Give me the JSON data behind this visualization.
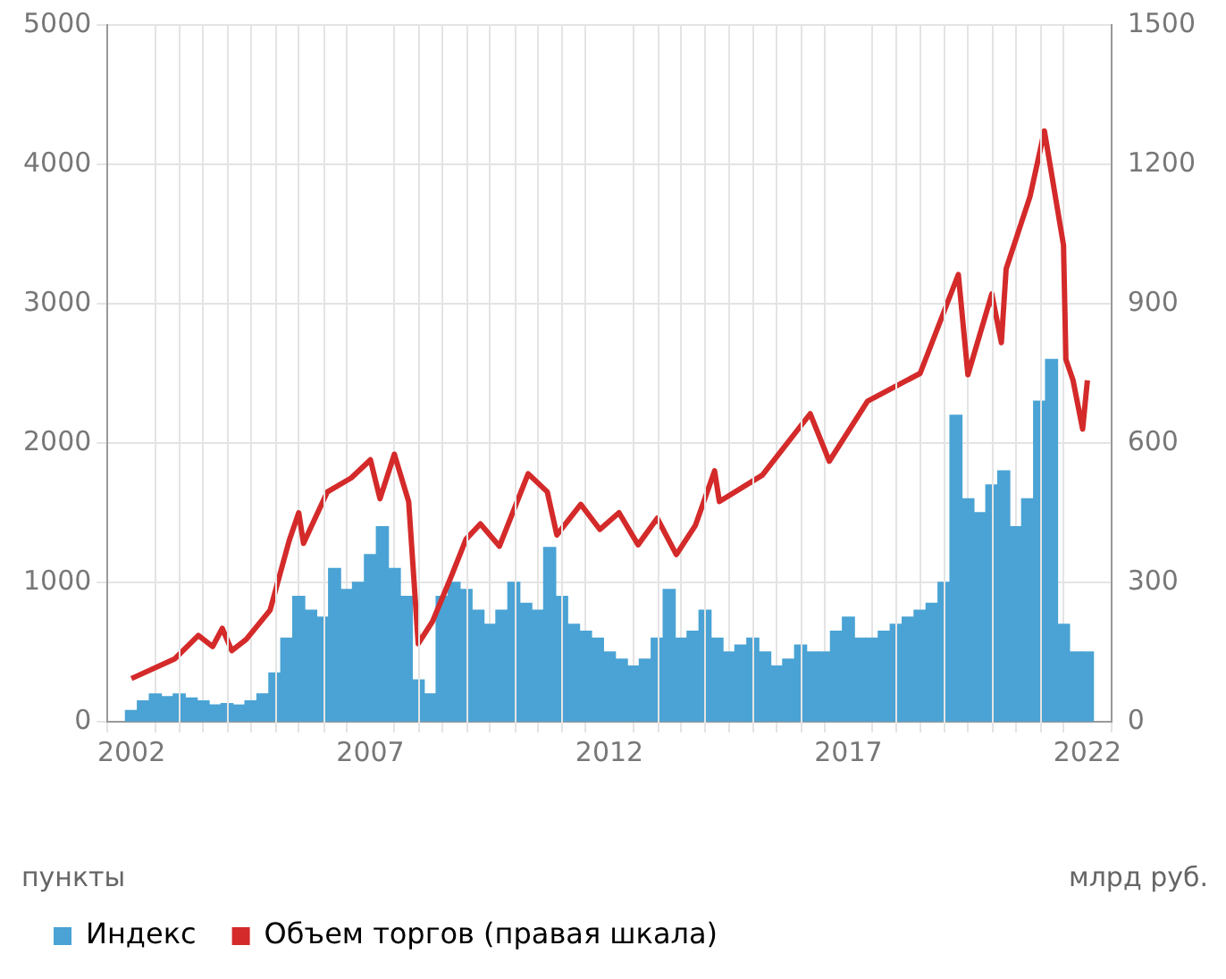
{
  "chart_data": {
    "type": "bar",
    "ylabel": "пункты",
    "y2label": "млрд руб.",
    "xlim": [
      2002,
      2022
    ],
    "xticks": [
      2002,
      {
        "value": 2003,
        "label": null
      },
      {
        "value": 2004,
        "label": null
      },
      {
        "value": 2005,
        "label": null
      },
      {
        "value": 2006,
        "label": null
      },
      2007,
      {
        "value": 2008,
        "label": null
      },
      {
        "value": 2009,
        "label": null
      },
      {
        "value": 2010,
        "label": null
      },
      {
        "value": 2011,
        "label": null
      },
      2012,
      {
        "value": 2013,
        "label": null
      },
      {
        "value": 2014,
        "label": null
      },
      {
        "value": 2015,
        "label": null
      },
      {
        "value": 2016,
        "label": null
      },
      2017,
      {
        "value": 2018,
        "label": null
      },
      {
        "value": 2019,
        "label": null
      },
      {
        "value": 2020,
        "label": null
      },
      {
        "value": 2021,
        "label": null
      },
      2022
    ],
    "ylim": [
      0,
      5000
    ],
    "yticks": [
      0,
      1000,
      2000,
      3000,
      4000,
      5000
    ],
    "y2lim": [
      0,
      1500
    ],
    "y2ticks": [
      0,
      300,
      600,
      900,
      1200,
      1500
    ],
    "grid": true,
    "legend": "bottom",
    "series": [
      {
        "name": "Индекс",
        "color": "#4aa3d4",
        "x": [
          2002,
          2002.25,
          2002.5,
          2002.75,
          2003,
          2003.25,
          2003.5,
          2003.75,
          2004,
          2004.25,
          2004.5,
          2004.75,
          2005,
          2005.25,
          2005.5,
          2005.75,
          2006,
          2006.25,
          2006.5,
          2006.75,
          2007,
          2007.25,
          2007.5,
          2007.75,
          2008,
          2008.25,
          2008.5,
          2008.75,
          2009,
          2009.25,
          2009.5,
          2009.75,
          2010,
          2010.25,
          2010.5,
          2010.75,
          2011,
          2011.25,
          2011.5,
          2011.75,
          2012,
          2012.25,
          2012.5,
          2012.75,
          2013,
          2013.25,
          2013.5,
          2013.75,
          2014,
          2014.25,
          2014.5,
          2014.75,
          2015,
          2015.25,
          2015.5,
          2015.75,
          2016,
          2016.25,
          2016.5,
          2016.75,
          2017,
          2017.25,
          2017.5,
          2017.75,
          2018,
          2018.25,
          2018.5,
          2018.75,
          2019,
          2019.25,
          2019.5,
          2019.75,
          2020,
          2020.25,
          2020.5,
          2020.75,
          2021,
          2021.25,
          2021.5,
          2021.75,
          2022
        ],
        "values": [
          80,
          150,
          200,
          180,
          200,
          170,
          150,
          120,
          130,
          120,
          150,
          200,
          350,
          600,
          900,
          800,
          750,
          1100,
          950,
          1000,
          1200,
          1400,
          1100,
          900,
          300,
          200,
          900,
          1000,
          950,
          800,
          700,
          800,
          1000,
          850,
          800,
          1250,
          900,
          700,
          650,
          600,
          500,
          450,
          400,
          450,
          600,
          950,
          600,
          650,
          800,
          600,
          500,
          550,
          600,
          500,
          400,
          450,
          550,
          500,
          500,
          650,
          750,
          600,
          600,
          650,
          700,
          750,
          800,
          850,
          1000,
          2200,
          1600,
          1500,
          1700,
          1800,
          1400,
          1600,
          2300,
          2600,
          700,
          500,
          500
        ]
      },
      {
        "name": "Объем торгов (правая шкала)",
        "type": "line",
        "axis": "y2",
        "color": "#d42a2a",
        "x": [
          2002,
          2002.9,
          2003.4,
          2003.7,
          2003.9,
          2004.1,
          2004.4,
          2004.9,
          2005.3,
          2005.5,
          2005.6,
          2006.1,
          2006.6,
          2007,
          2007.2,
          2007.5,
          2007.8,
          2008,
          2008.3,
          2008.7,
          2009,
          2009.3,
          2009.7,
          2010.3,
          2010.7,
          2010.9,
          2011.4,
          2011.8,
          2012.2,
          2012.6,
          2013,
          2013.4,
          2013.8,
          2014.2,
          2014.3,
          2015.2,
          2016.2,
          2016.6,
          2017.4,
          2018.5,
          2019.3,
          2019.5,
          2020,
          2020.2,
          2020.3,
          2020.8,
          2021.1,
          2021.5,
          2021.55,
          2021.7,
          2021.9,
          2022
        ],
        "values": [
          93,
          135,
          186,
          162,
          201,
          153,
          177,
          240,
          390,
          450,
          384,
          495,
          525,
          564,
          480,
          576,
          474,
          168,
          216,
          315,
          393,
          426,
          378,
          534,
          495,
          402,
          468,
          414,
          450,
          381,
          438,
          360,
          423,
          540,
          474,
          531,
          663,
          561,
          690,
          750,
          963,
          747,
          921,
          816,
          975,
          1131,
          1272,
          1026,
          780,
          735,
          630,
          735
        ]
      }
    ]
  }
}
